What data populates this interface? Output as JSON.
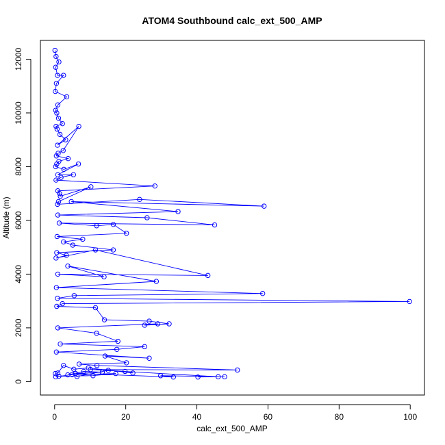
{
  "chart_data": {
    "type": "scatter",
    "title": "ATOM4 Southbound calc_ext_500_AMP",
    "xlabel": "calc_ext_500_AMP",
    "ylabel": "Altitude (m)",
    "xlim": [
      -4,
      104
    ],
    "ylim": [
      -500,
      12700
    ],
    "xticks": [
      0,
      20,
      40,
      60,
      80,
      100
    ],
    "xtick_labels": [
      "0",
      "20",
      "40",
      "60",
      "80",
      "100"
    ],
    "yticks": [
      0,
      2000,
      4000,
      6000,
      8000,
      10000,
      12000
    ],
    "ytick_labels": [
      "0",
      "2000",
      "4000",
      "6000",
      "8000",
      "10000",
      "12000"
    ],
    "grid": false,
    "legend": "none",
    "colors": {
      "series": "#0000ff",
      "axis": "#000000",
      "background": "#ffffff"
    },
    "series": [
      {
        "marker": "open-circle",
        "line": true,
        "x": [
          0.1,
          0.4,
          1.2,
          0.3,
          0.8,
          2.5,
          0.5,
          0.2,
          3.4,
          0.9,
          0.3,
          0.6,
          1.1,
          2.2,
          0.4,
          0.7,
          1.5,
          3.1,
          0.8,
          6.8,
          2.4,
          1.0,
          0.5,
          3.8,
          1.2,
          0.6,
          0.3,
          2.6,
          6.7,
          0.9,
          5.3,
          1.8,
          0.4,
          28.2,
          0.9,
          1.4,
          1.6,
          10.2,
          1.1,
          0.8,
          23.9,
          58.9,
          4.7,
          34.7,
          0.9,
          26.0,
          45.0,
          1.3,
          11.8,
          16.5,
          20.2,
          0.7,
          7.9,
          2.5,
          5.1,
          16.5,
          0.6,
          3.3,
          0.4,
          11.5,
          43.1,
          0.9,
          13.9,
          3.7,
          28.6,
          0.5,
          58.5,
          5.5,
          0.8,
          99.8,
          2.2,
          0.6,
          11.5,
          14.0,
          26.6,
          32.2,
          25.3,
          29.0,
          0.9,
          11.8,
          17.8,
          1.6,
          25.3,
          17.5,
          0.5,
          26.6,
          14.2,
          20.2,
          6.9,
          11.9,
          51.4,
          10.1,
          46.0,
          40.3,
          47.8,
          29.8,
          33.4,
          5.9,
          13.4,
          8.2,
          3.7,
          17.2,
          10.8,
          1.2,
          0.3,
          4.9,
          6.3,
          15.1,
          19.8,
          22.0,
          9.5,
          5.4,
          2.5,
          0.9,
          0.2
        ],
        "y": [
          12330,
          12100,
          11900,
          11700,
          11400,
          11400,
          11100,
          10800,
          10600,
          10300,
          10100,
          10000,
          9800,
          9600,
          9500,
          9400,
          9200,
          9000,
          8800,
          9500,
          8600,
          8500,
          8400,
          8300,
          8200,
          8100,
          8000,
          7900,
          8100,
          7700,
          7700,
          7600,
          7500,
          7280,
          7100,
          7000,
          6900,
          7250,
          6700,
          6600,
          6780,
          6530,
          6700,
          6330,
          6200,
          6100,
          5830,
          5900,
          5800,
          5850,
          5520,
          5400,
          5300,
          5200,
          5080,
          4900,
          4800,
          4700,
          4600,
          4900,
          3950,
          4000,
          3900,
          4300,
          3730,
          3500,
          3280,
          3200,
          3100,
          2980,
          2900,
          2800,
          2750,
          2300,
          2250,
          2150,
          2100,
          2150,
          2000,
          1800,
          1500,
          1400,
          1300,
          1200,
          1100,
          870,
          950,
          700,
          650,
          600,
          430,
          450,
          180,
          170,
          180,
          220,
          170,
          300,
          350,
          380,
          250,
          300,
          220,
          200,
          180,
          260,
          190,
          420,
          380,
          320,
          510,
          460,
          600,
          320,
          300
        ]
      }
    ]
  }
}
